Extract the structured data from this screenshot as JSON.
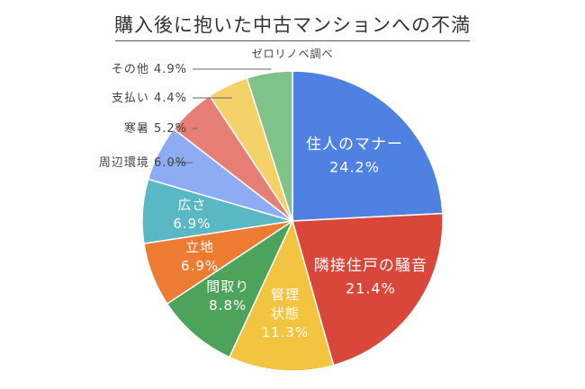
{
  "title": "購入後に抱いた中古マンションへの不満",
  "subtitle": "ゼロリノベ調べ",
  "chart_data": {
    "type": "pie",
    "title": "購入後に抱いた中古マンションへの不満",
    "subtitle": "ゼロリノベ調べ",
    "unit": "%",
    "start_angle": "12 o'clock, clockwise",
    "slices": [
      {
        "label": "住人のマナー",
        "value": 24.2,
        "value_text": "24.2%",
        "color": "#4f81e3",
        "label_position": "inside",
        "label_color": "#ffffff"
      },
      {
        "label": "隣接住戸の騒音",
        "value": 21.4,
        "value_text": "21.4%",
        "color": "#d9473b",
        "label_position": "inside",
        "label_color": "#ffffff"
      },
      {
        "label": "管理状態",
        "label_lines": [
          "管理",
          "状態"
        ],
        "value": 11.3,
        "value_text": "11.3%",
        "color": "#f3c440",
        "label_position": "inside",
        "label_color": "#ffffff"
      },
      {
        "label": "間取り",
        "value": 8.8,
        "value_text": "8.8%",
        "color": "#4ea35a",
        "label_position": "inside",
        "label_color": "#ffffff"
      },
      {
        "label": "立地",
        "value": 6.9,
        "value_text": "6.9%",
        "color": "#ee7b32",
        "label_position": "inside",
        "label_color": "#ffffff"
      },
      {
        "label": "広さ",
        "value": 6.9,
        "value_text": "6.9%",
        "color": "#5ab8c4",
        "label_position": "inside",
        "label_color": "#ffffff"
      },
      {
        "label": "周辺環境",
        "value": 6.0,
        "value_text": "6.0%",
        "color": "#8eacf3",
        "label_position": "outside",
        "label_color": "#444444"
      },
      {
        "label": "寒暑",
        "value": 5.2,
        "value_text": "5.2%",
        "color": "#e67e76",
        "label_position": "outside",
        "label_color": "#444444"
      },
      {
        "label": "支払い",
        "value": 4.4,
        "value_text": "4.4%",
        "color": "#f5d16a",
        "label_position": "outside",
        "label_color": "#444444"
      },
      {
        "label": "その他",
        "value": 4.9,
        "value_text": "4.9%",
        "color": "#7fc28a",
        "label_position": "outside",
        "label_color": "#444444"
      }
    ]
  }
}
